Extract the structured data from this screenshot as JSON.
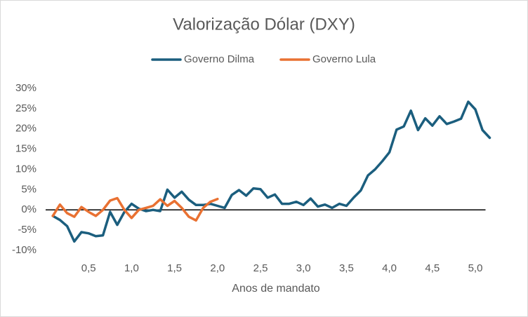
{
  "chart_data": {
    "type": "line",
    "title": "Valorização Dólar (DXY)",
    "xlabel": "Anos de mandato",
    "xlim": [
      0,
      5.2
    ],
    "ylim": [
      -10,
      30
    ],
    "xticks": [
      {
        "value": 0.5,
        "label": "0,5"
      },
      {
        "value": 1.0,
        "label": "1,0"
      },
      {
        "value": 1.5,
        "label": "1,5"
      },
      {
        "value": 2.0,
        "label": "2,0"
      },
      {
        "value": 2.5,
        "label": "2,5"
      },
      {
        "value": 3.0,
        "label": "3,0"
      },
      {
        "value": 3.5,
        "label": "3,5"
      },
      {
        "value": 4.0,
        "label": "4,0"
      },
      {
        "value": 4.5,
        "label": "4,5"
      },
      {
        "value": 5.0,
        "label": "5,0"
      }
    ],
    "yticks": [
      {
        "value": -10,
        "label": "-10%"
      },
      {
        "value": -5,
        "label": "-5%"
      },
      {
        "value": 0,
        "label": "0%"
      },
      {
        "value": 5,
        "label": "5%"
      },
      {
        "value": 10,
        "label": "10%"
      },
      {
        "value": 15,
        "label": "15%"
      },
      {
        "value": 20,
        "label": "20%"
      },
      {
        "value": 25,
        "label": "25%"
      },
      {
        "value": 30,
        "label": "30%"
      }
    ],
    "legend": "top",
    "series": [
      {
        "name": "Governo Dilma",
        "color": "#1b5e7e",
        "x": [
          0.083,
          0.167,
          0.25,
          0.333,
          0.417,
          0.5,
          0.583,
          0.667,
          0.75,
          0.833,
          0.917,
          1.0,
          1.083,
          1.167,
          1.25,
          1.333,
          1.417,
          1.5,
          1.583,
          1.667,
          1.75,
          1.833,
          1.917,
          2.0,
          2.083,
          2.167,
          2.25,
          2.333,
          2.417,
          2.5,
          2.583,
          2.667,
          2.75,
          2.833,
          2.917,
          3.0,
          3.083,
          3.167,
          3.25,
          3.333,
          3.417,
          3.5,
          3.583,
          3.667,
          3.75,
          3.833,
          3.917,
          4.0,
          4.083,
          4.167,
          4.25,
          4.333,
          4.417,
          4.5,
          4.583,
          4.667,
          4.75,
          4.833,
          4.917,
          5.0,
          5.083,
          5.167
        ],
        "values": [
          -1.5,
          -2.5,
          -4,
          -7.8,
          -5.5,
          -5.8,
          -6.5,
          -6.3,
          -0.5,
          -3.7,
          -0.5,
          1.5,
          0.3,
          -0.3,
          0,
          -0.3,
          5,
          3,
          4.5,
          2.5,
          1.2,
          1.2,
          1.5,
          1,
          0.5,
          3.7,
          4.9,
          3.5,
          5.3,
          5.1,
          3,
          3.8,
          1.5,
          1.5,
          2,
          1.2,
          2.8,
          0.8,
          1.3,
          0.5,
          1.5,
          1,
          3,
          4.8,
          8.5,
          10,
          12,
          14.2,
          19.8,
          20.6,
          24.5,
          19.7,
          22.6,
          20.8,
          23.1,
          21.2,
          21.8,
          22.5,
          26.7,
          24.8,
          19.7,
          17.8
        ]
      },
      {
        "name": "Governo Lula",
        "color": "#e97132",
        "x": [
          0.083,
          0.167,
          0.25,
          0.333,
          0.417,
          0.5,
          0.583,
          0.667,
          0.75,
          0.833,
          0.917,
          1.0,
          1.083,
          1.167,
          1.25,
          1.333,
          1.417,
          1.5,
          1.583,
          1.667,
          1.75,
          1.833,
          1.917,
          2.0
        ],
        "values": [
          -1.5,
          1.3,
          -0.8,
          -1.7,
          0.7,
          -0.5,
          -1.5,
          0,
          2.3,
          2.9,
          0,
          -2,
          0,
          0.5,
          1,
          2.6,
          1,
          2.2,
          0.5,
          -1.7,
          -2.6,
          0.5,
          2,
          2.7
        ]
      }
    ]
  }
}
